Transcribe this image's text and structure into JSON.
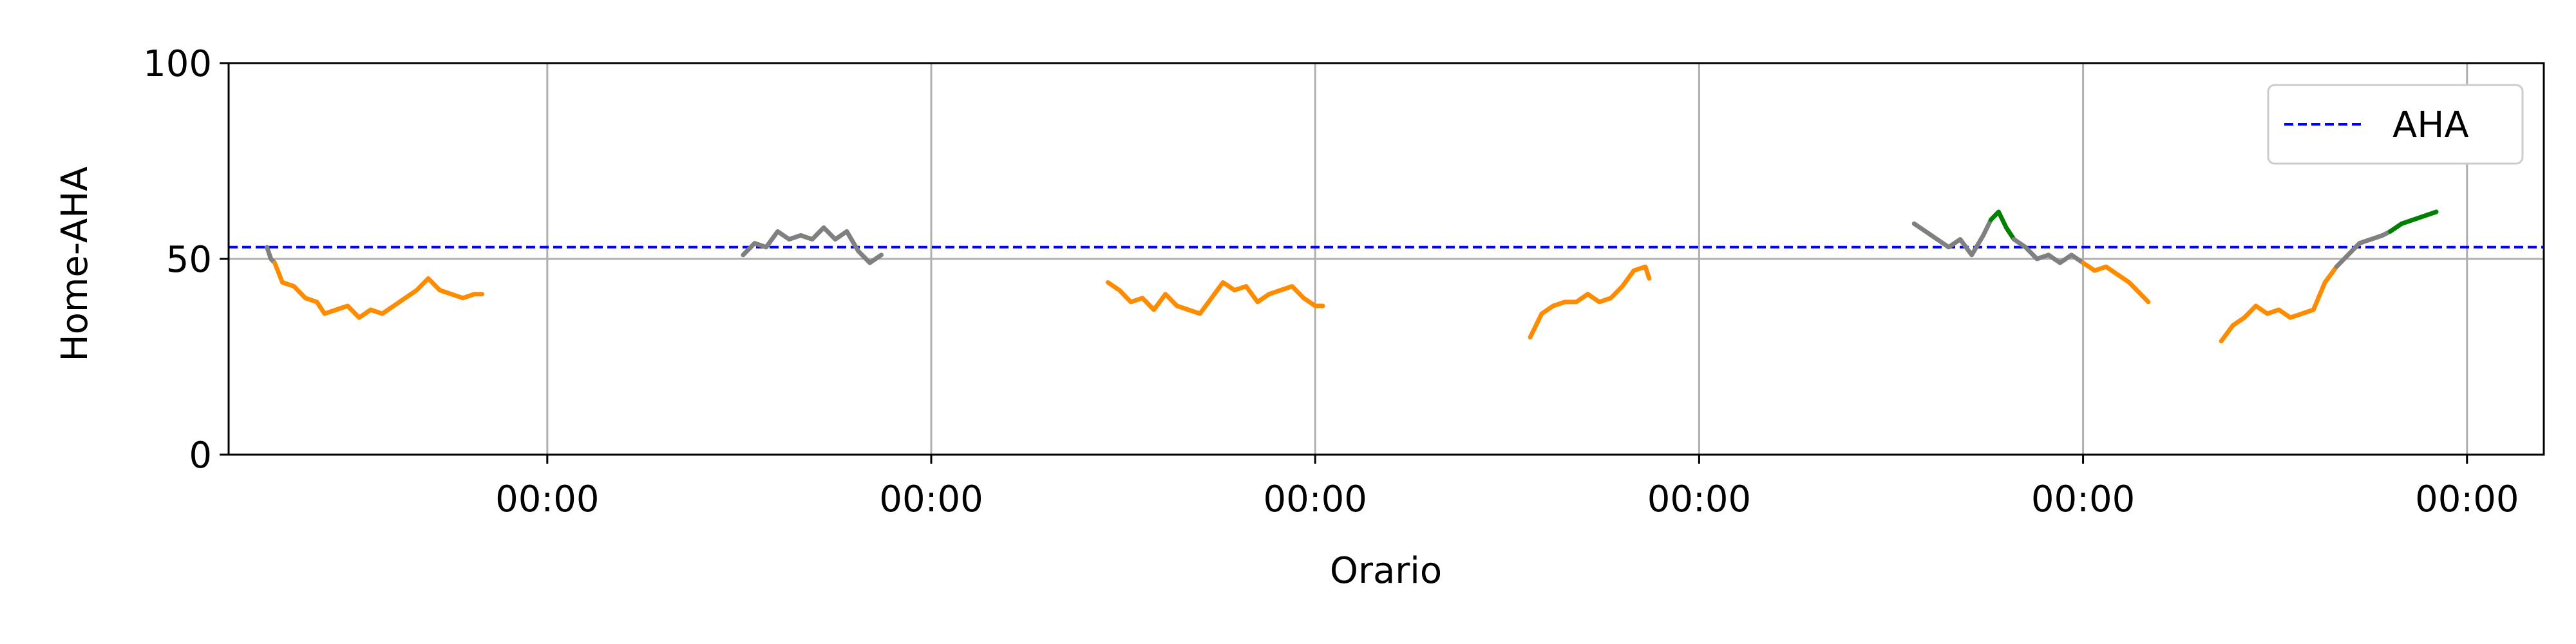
{
  "chart_data": {
    "type": "line",
    "title": "",
    "xlabel": "Orario",
    "ylabel": "Home-AHA",
    "ylim": [
      0,
      100
    ],
    "yticks": [
      0,
      50,
      100
    ],
    "ytick_labels": [
      "0",
      "50",
      "100"
    ],
    "xlim": [
      0.17,
      6.2
    ],
    "xticks": [
      1,
      2,
      3,
      4,
      5,
      6
    ],
    "xtick_labels": [
      "00:00",
      "00:00",
      "00:00",
      "00:00",
      "00:00",
      "00:00"
    ],
    "x_unit": "days",
    "grid": true,
    "legend": {
      "position": "top-right",
      "entries": [
        "AHA"
      ]
    },
    "reference_lines": [
      {
        "name": "AHA",
        "y": 53,
        "color": "#0000ff",
        "style": "dashed"
      }
    ],
    "colors": {
      "orange": "#ff8c00",
      "gray": "#808080",
      "green": "#008000",
      "reference": "#0000ff"
    },
    "segments": [
      {
        "color": "gray",
        "points": [
          [
            0.27,
            53
          ],
          [
            0.28,
            50
          ],
          [
            0.29,
            49
          ]
        ]
      },
      {
        "color": "orange",
        "points": [
          [
            0.29,
            49
          ],
          [
            0.31,
            44
          ],
          [
            0.34,
            43
          ],
          [
            0.37,
            40
          ],
          [
            0.4,
            39
          ],
          [
            0.42,
            36
          ],
          [
            0.45,
            37
          ],
          [
            0.48,
            38
          ],
          [
            0.51,
            35
          ],
          [
            0.54,
            37
          ],
          [
            0.57,
            36
          ],
          [
            0.6,
            38
          ],
          [
            0.63,
            40
          ],
          [
            0.66,
            42
          ],
          [
            0.69,
            45
          ],
          [
            0.72,
            42
          ],
          [
            0.75,
            41
          ],
          [
            0.78,
            40
          ],
          [
            0.81,
            41
          ],
          [
            0.83,
            41
          ]
        ]
      },
      {
        "color": "gray",
        "points": [
          [
            1.51,
            51
          ],
          [
            1.54,
            54
          ],
          [
            1.57,
            53
          ],
          [
            1.6,
            57
          ],
          [
            1.63,
            55
          ],
          [
            1.66,
            56
          ],
          [
            1.69,
            55
          ],
          [
            1.72,
            58
          ],
          [
            1.75,
            55
          ],
          [
            1.78,
            57
          ],
          [
            1.81,
            52
          ],
          [
            1.84,
            49
          ],
          [
            1.87,
            51
          ]
        ]
      },
      {
        "color": "orange",
        "points": [
          [
            2.46,
            44
          ],
          [
            2.49,
            42
          ],
          [
            2.52,
            39
          ],
          [
            2.55,
            40
          ],
          [
            2.58,
            37
          ],
          [
            2.61,
            41
          ],
          [
            2.64,
            38
          ],
          [
            2.67,
            37
          ],
          [
            2.7,
            36
          ],
          [
            2.73,
            40
          ],
          [
            2.76,
            44
          ],
          [
            2.79,
            42
          ],
          [
            2.82,
            43
          ],
          [
            2.85,
            39
          ],
          [
            2.88,
            41
          ],
          [
            2.91,
            42
          ],
          [
            2.94,
            43
          ],
          [
            2.97,
            40
          ],
          [
            3.0,
            38
          ],
          [
            3.02,
            38
          ]
        ]
      },
      {
        "color": "orange",
        "points": [
          [
            3.56,
            30
          ],
          [
            3.59,
            36
          ],
          [
            3.62,
            38
          ],
          [
            3.65,
            39
          ],
          [
            3.68,
            39
          ],
          [
            3.71,
            41
          ],
          [
            3.74,
            39
          ],
          [
            3.77,
            40
          ],
          [
            3.8,
            43
          ],
          [
            3.83,
            47
          ],
          [
            3.86,
            48
          ],
          [
            3.87,
            45
          ]
        ]
      },
      {
        "color": "gray",
        "points": [
          [
            4.56,
            59
          ],
          [
            4.59,
            57
          ],
          [
            4.62,
            55
          ],
          [
            4.65,
            53
          ],
          [
            4.68,
            55
          ],
          [
            4.71,
            51
          ],
          [
            4.74,
            56
          ],
          [
            4.76,
            60
          ]
        ]
      },
      {
        "color": "green",
        "points": [
          [
            4.76,
            60
          ],
          [
            4.78,
            62
          ],
          [
            4.8,
            58
          ],
          [
            4.82,
            55
          ]
        ]
      },
      {
        "color": "gray",
        "points": [
          [
            4.82,
            55
          ],
          [
            4.85,
            53
          ],
          [
            4.88,
            50
          ],
          [
            4.91,
            51
          ],
          [
            4.94,
            49
          ],
          [
            4.97,
            51
          ],
          [
            5.0,
            49
          ]
        ]
      },
      {
        "color": "orange",
        "points": [
          [
            5.0,
            49
          ],
          [
            5.03,
            47
          ],
          [
            5.06,
            48
          ],
          [
            5.09,
            46
          ],
          [
            5.12,
            44
          ],
          [
            5.15,
            41
          ],
          [
            5.17,
            39
          ]
        ]
      },
      {
        "color": "orange",
        "points": [
          [
            5.36,
            29
          ],
          [
            5.39,
            33
          ],
          [
            5.42,
            35
          ],
          [
            5.45,
            38
          ],
          [
            5.48,
            36
          ],
          [
            5.51,
            37
          ],
          [
            5.54,
            35
          ],
          [
            5.57,
            36
          ],
          [
            5.6,
            37
          ],
          [
            5.63,
            44
          ],
          [
            5.66,
            48
          ]
        ]
      },
      {
        "color": "gray",
        "points": [
          [
            5.66,
            48
          ],
          [
            5.69,
            51
          ],
          [
            5.72,
            54
          ],
          [
            5.75,
            55
          ],
          [
            5.78,
            56
          ],
          [
            5.8,
            57
          ]
        ]
      },
      {
        "color": "green",
        "points": [
          [
            5.8,
            57
          ],
          [
            5.83,
            59
          ],
          [
            5.86,
            60
          ],
          [
            5.89,
            61
          ],
          [
            5.92,
            62
          ]
        ]
      }
    ]
  }
}
